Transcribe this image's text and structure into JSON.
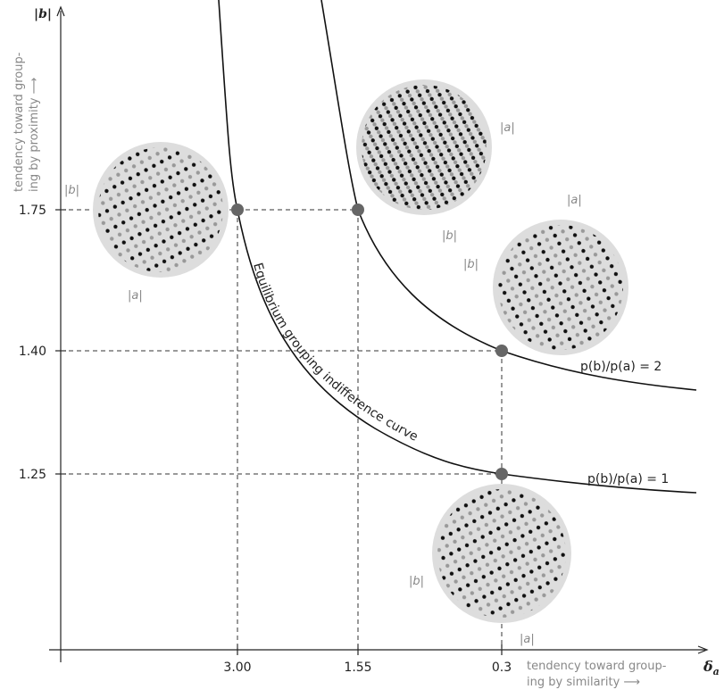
{
  "axes": {
    "y_symbol": "|b|",
    "x_symbol": "δ",
    "x_symbol_sub": "a",
    "y_title": [
      "tendency toward group-",
      "ing by proximity ⟶"
    ],
    "x_title": [
      "tendency toward group-",
      "ing by similarity ⟶"
    ]
  },
  "x_ticks": [
    "3.00",
    "1.55",
    "0.3"
  ],
  "y_ticks": [
    "1.75",
    "1.40",
    "1.25"
  ],
  "curves": [
    {
      "label": "p(b)/p(a) = 1"
    },
    {
      "label": "p(b)/p(a) = 2"
    }
  ],
  "curve_annotation": "Equilibrium grouping indifference curve",
  "discs": [
    {
      "labels": [
        "|b|",
        "|a|"
      ]
    },
    {
      "labels": [
        "|a|",
        "|b|"
      ]
    },
    {
      "labels": [
        "|b|",
        "|a|"
      ]
    },
    {
      "labels": [
        "|b|",
        "|a|"
      ]
    }
  ]
}
